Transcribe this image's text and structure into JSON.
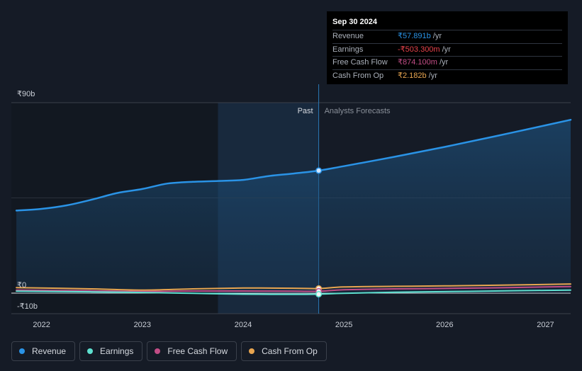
{
  "chart_data": {
    "type": "area",
    "yaxis": {
      "top_label": "₹90b",
      "zero_label": "₹0",
      "bottom_label": "-₹10b",
      "ylim": [
        -10,
        90
      ]
    },
    "xaxis": {
      "ticks": [
        "2022",
        "2023",
        "2024",
        "2025",
        "2026",
        "2027"
      ],
      "xlim": [
        2021.7,
        2027.25
      ]
    },
    "past_label": "Past",
    "forecast_label": "Analysts Forecasts",
    "divider_x": 2024.75,
    "shade_start": 2023.75,
    "series": [
      {
        "name": "Revenue",
        "color": "#2a93e6",
        "unit": "b",
        "points": [
          [
            2021.75,
            39
          ],
          [
            2022.0,
            39.8
          ],
          [
            2022.25,
            41.5
          ],
          [
            2022.5,
            44.2
          ],
          [
            2022.75,
            47.3
          ],
          [
            2023.0,
            49.2
          ],
          [
            2023.25,
            51.8
          ],
          [
            2023.5,
            52.6
          ],
          [
            2023.75,
            53
          ],
          [
            2024.0,
            53.5
          ],
          [
            2024.25,
            55.3
          ],
          [
            2024.5,
            56.5
          ],
          [
            2024.75,
            57.89
          ],
          [
            2025.0,
            60
          ],
          [
            2025.5,
            64.4
          ],
          [
            2026.0,
            69.1
          ],
          [
            2026.5,
            74.1
          ],
          [
            2027.0,
            79.3
          ],
          [
            2027.25,
            81.9
          ]
        ]
      },
      {
        "name": "Earnings",
        "color": "#5ee0cf",
        "unit": "b",
        "points": [
          [
            2021.75,
            0.9
          ],
          [
            2022.5,
            0.6
          ],
          [
            2023.0,
            0.3
          ],
          [
            2023.5,
            -0.1
          ],
          [
            2024.0,
            -0.5
          ],
          [
            2024.5,
            -0.6
          ],
          [
            2024.75,
            -0.5
          ],
          [
            2025.0,
            -0.1
          ],
          [
            2025.5,
            0.4
          ],
          [
            2026.0,
            0.7
          ],
          [
            2026.5,
            1.0
          ],
          [
            2027.0,
            1.3
          ],
          [
            2027.25,
            1.4
          ]
        ]
      },
      {
        "name": "Free Cash Flow",
        "color": "#c24d86",
        "unit": "b",
        "points": [
          [
            2021.75,
            1.4
          ],
          [
            2022.5,
            1.1
          ],
          [
            2023.0,
            0.8
          ],
          [
            2023.5,
            1.0
          ],
          [
            2024.0,
            1.0
          ],
          [
            2024.5,
            0.9
          ],
          [
            2024.75,
            0.87
          ],
          [
            2025.0,
            1.6
          ],
          [
            2025.5,
            2.0
          ],
          [
            2026.0,
            2.2
          ],
          [
            2026.5,
            2.5
          ],
          [
            2027.0,
            2.9
          ],
          [
            2027.25,
            3.1
          ]
        ]
      },
      {
        "name": "Cash From Op",
        "color": "#e8a550",
        "unit": "b",
        "points": [
          [
            2021.75,
            2.6
          ],
          [
            2022.5,
            2.0
          ],
          [
            2023.0,
            1.4
          ],
          [
            2023.5,
            2.0
          ],
          [
            2024.0,
            2.4
          ],
          [
            2024.5,
            2.3
          ],
          [
            2024.75,
            2.18
          ],
          [
            2025.0,
            2.9
          ],
          [
            2025.5,
            3.2
          ],
          [
            2026.0,
            3.4
          ],
          [
            2026.5,
            3.7
          ],
          [
            2027.0,
            4.1
          ],
          [
            2027.25,
            4.3
          ]
        ]
      }
    ]
  },
  "tooltip": {
    "date": "Sep 30 2024",
    "rows": [
      {
        "label": "Revenue",
        "value": "₹57.891b",
        "unit": "/yr",
        "color": "#2a93e6"
      },
      {
        "label": "Earnings",
        "value": "-₹503.300m",
        "unit": "/yr",
        "color": "#e8434b"
      },
      {
        "label": "Free Cash Flow",
        "value": "₹874.100m",
        "unit": "/yr",
        "color": "#c24d86"
      },
      {
        "label": "Cash From Op",
        "value": "₹2.182b",
        "unit": "/yr",
        "color": "#e8a550"
      }
    ]
  },
  "legend": [
    {
      "label": "Revenue",
      "color": "#2a93e6"
    },
    {
      "label": "Earnings",
      "color": "#5ee0cf"
    },
    {
      "label": "Free Cash Flow",
      "color": "#c24d86"
    },
    {
      "label": "Cash From Op",
      "color": "#e8a550"
    }
  ]
}
